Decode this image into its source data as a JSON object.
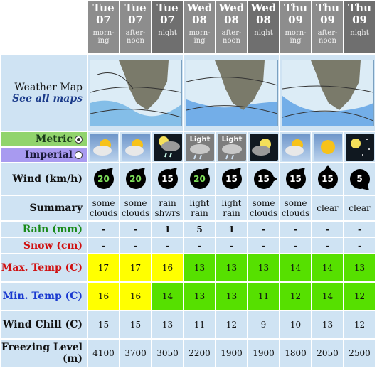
{
  "days": [
    {
      "name": "Tue",
      "date": "07",
      "time": "morn-\ning",
      "period": "day"
    },
    {
      "name": "Tue",
      "date": "07",
      "time": "after-\nnoon",
      "period": "day"
    },
    {
      "name": "Tue",
      "date": "07",
      "time": "night",
      "period": "night"
    },
    {
      "name": "Wed",
      "date": "08",
      "time": "morn-\ning",
      "period": "day"
    },
    {
      "name": "Wed",
      "date": "08",
      "time": "after-\nnoon",
      "period": "day"
    },
    {
      "name": "Wed",
      "date": "08",
      "time": "night",
      "period": "night"
    },
    {
      "name": "Thu",
      "date": "09",
      "time": "morn-\ning",
      "period": "day"
    },
    {
      "name": "Thu",
      "date": "09",
      "time": "after-\nnoon",
      "period": "day"
    },
    {
      "name": "Thu",
      "date": "09",
      "time": "night",
      "period": "night"
    }
  ],
  "labels": {
    "weather_map": "Weather Map",
    "see_all_maps": "See all maps",
    "metric": "Metric",
    "imperial": "Imperial",
    "wind": "Wind (km/h)",
    "summary": "Summary",
    "rain": "Rain (mm)",
    "snow": "Snow (cm)",
    "max_temp": "Max. Temp (C)",
    "min_temp": "Min. Temp (C)",
    "wind_chill": "Wind Chill (C)",
    "freezing_level": "Freezing Level (m)"
  },
  "units": {
    "selected": "metric"
  },
  "weather_icons": [
    "partly-cloudy-sun-icon",
    "partly-cloudy-sun-icon",
    "night-rain-showers-icon",
    "light-rain-icon",
    "light-rain-icon",
    "night-cloudy-moon-icon",
    "partly-cloudy-sun-icon",
    "clear-sun-icon",
    "clear-night-stars-icon"
  ],
  "icon_texts": [
    "",
    "",
    "",
    "Light",
    "Light",
    "",
    "",
    "",
    ""
  ],
  "wind": [
    {
      "speed": "20",
      "color": "green",
      "dir": "ne"
    },
    {
      "speed": "20",
      "color": "green",
      "dir": "ne"
    },
    {
      "speed": "15",
      "color": "white",
      "dir": "ne"
    },
    {
      "speed": "20",
      "color": "green",
      "dir": "ne"
    },
    {
      "speed": "15",
      "color": "white",
      "dir": "ne"
    },
    {
      "speed": "15",
      "color": "white",
      "dir": "e"
    },
    {
      "speed": "15",
      "color": "white",
      "dir": "ne"
    },
    {
      "speed": "15",
      "color": "white",
      "dir": "n"
    },
    {
      "speed": "5",
      "color": "white",
      "dir": "se"
    }
  ],
  "summary": [
    "some clouds",
    "some clouds",
    "rain shwrs",
    "light rain",
    "light rain",
    "some clouds",
    "some clouds",
    "clear",
    "clear"
  ],
  "rain": [
    "-",
    "-",
    "1",
    "5",
    "1",
    "-",
    "-",
    "-",
    "-"
  ],
  "snow": [
    "-",
    "-",
    "-",
    "-",
    "-",
    "-",
    "-",
    "-",
    "-"
  ],
  "max_temp": [
    "17",
    "17",
    "16",
    "13",
    "13",
    "13",
    "14",
    "14",
    "13"
  ],
  "min_temp": [
    "16",
    "16",
    "14",
    "13",
    "13",
    "11",
    "12",
    "14",
    "12"
  ],
  "temp_colors": {
    "warm": "#ffff00",
    "mild": "#56e000"
  },
  "max_temp_level": [
    "warm",
    "warm",
    "warm",
    "mild",
    "mild",
    "mild",
    "mild",
    "mild",
    "mild"
  ],
  "min_temp_level": [
    "warm",
    "warm",
    "mild",
    "mild",
    "mild",
    "mild",
    "mild",
    "mild",
    "mild"
  ],
  "wind_chill": [
    "15",
    "15",
    "13",
    "11",
    "12",
    "9",
    "10",
    "13",
    "12"
  ],
  "freezing_level": [
    "4100",
    "3700",
    "3050",
    "2200",
    "1900",
    "1900",
    "1800",
    "2050",
    "2500"
  ]
}
